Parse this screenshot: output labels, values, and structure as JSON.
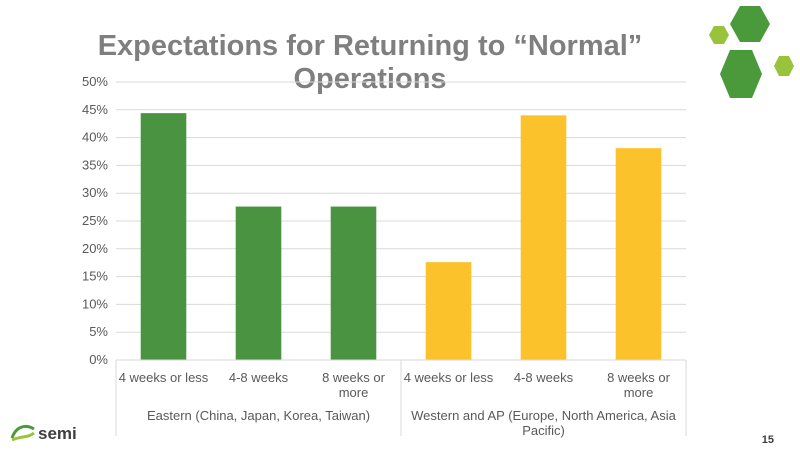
{
  "title_line1": "Expectations for Returning to “Normal”",
  "title_line2": "Operations",
  "page_number": "15",
  "logo_text": "semi",
  "colors": {
    "eastern": "#4a9340",
    "western": "#fcc22b",
    "grid": "#d9d9d9",
    "hex_dark": "#4a9a3c",
    "hex_light": "#9ac33c"
  },
  "chart_data": {
    "type": "bar",
    "ylim": [
      0,
      50
    ],
    "y_ticks": [
      "0%",
      "5%",
      "10%",
      "15%",
      "20%",
      "25%",
      "30%",
      "35%",
      "40%",
      "45%",
      "50%"
    ],
    "groups": [
      {
        "name": "Eastern (China, Japan, Korea, Taiwan)",
        "categories": [
          [
            "4 weeks or less"
          ],
          [
            "4-8 weeks"
          ],
          [
            "8 weeks or",
            "more"
          ]
        ],
        "values": [
          44.4,
          27.6,
          27.6
        ]
      },
      {
        "name_lines": [
          "Western and AP (Europe, North America, Asia",
          "Pacific)"
        ],
        "categories": [
          [
            "4 weeks or less"
          ],
          [
            "4-8 weeks"
          ],
          [
            "8 weeks or",
            "more"
          ]
        ],
        "values": [
          17.6,
          44.0,
          38.1
        ]
      }
    ]
  }
}
